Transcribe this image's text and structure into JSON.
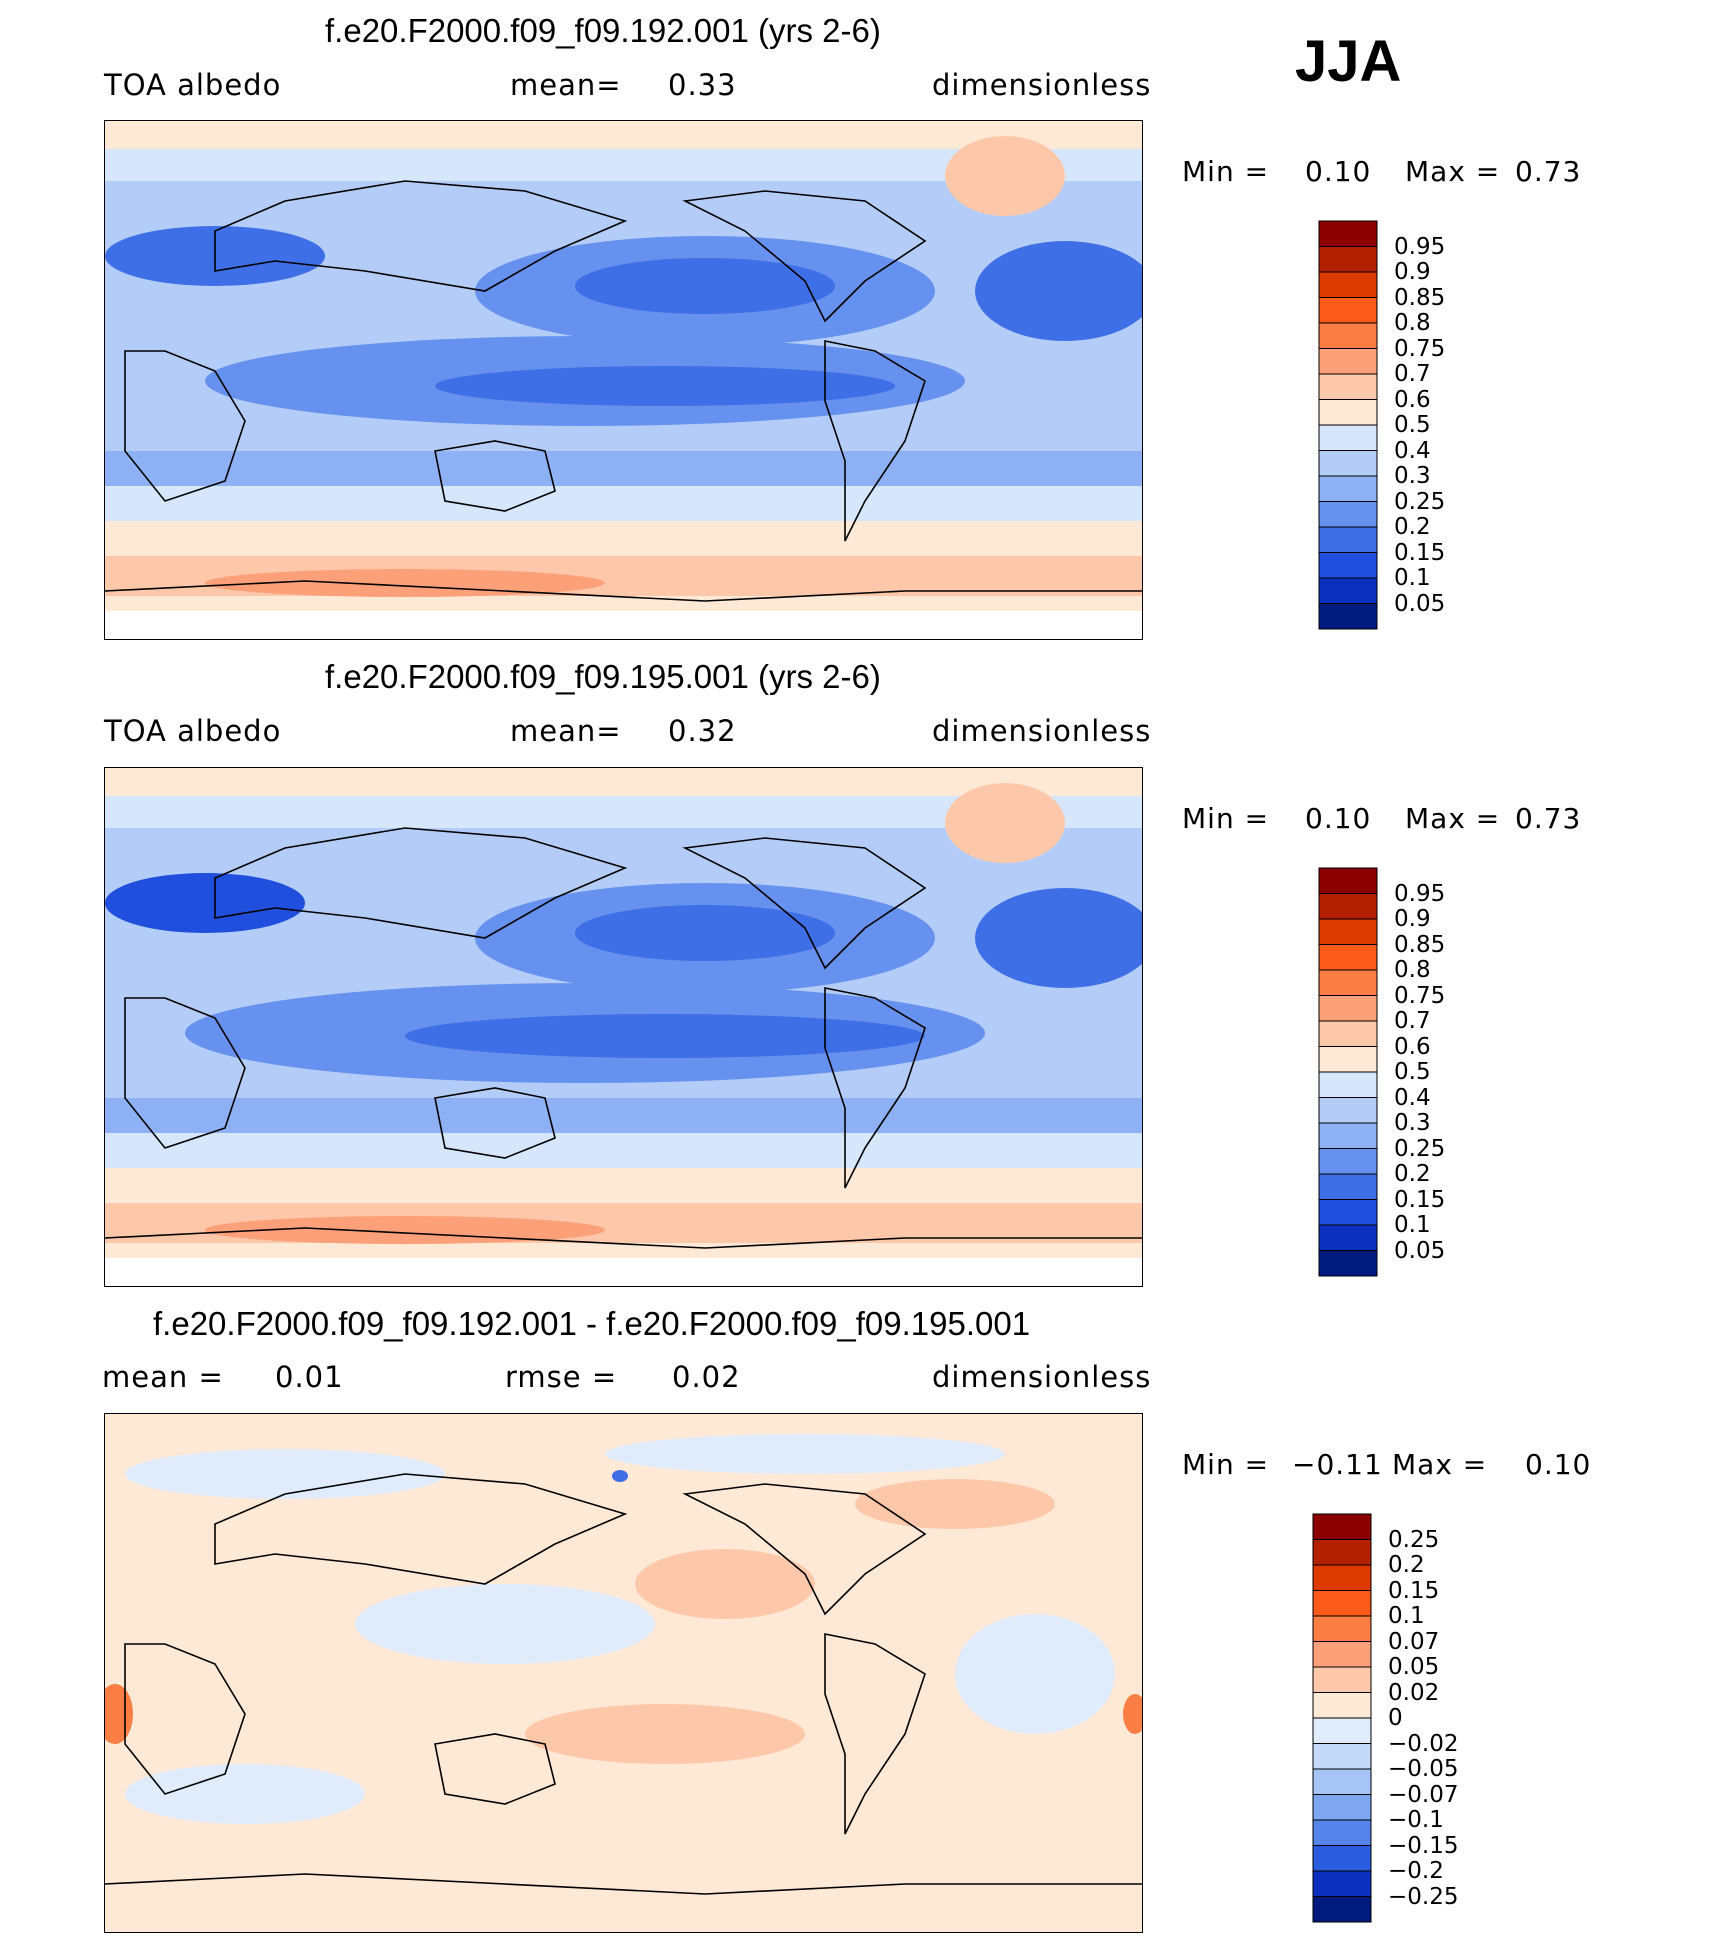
{
  "season": "JJA",
  "chart_data": [
    {
      "type": "heatmap",
      "title": "f.e20.F2000.f09_f09.192.001 (yrs 2-6)",
      "left_label": "TOA albedo",
      "mean_label": "mean=",
      "mean_value": "0.33",
      "units": "dimensionless",
      "min_label": "Min =",
      "min_value": "0.10",
      "max_label": "Max =",
      "max_value": "0.73",
      "colorbar": {
        "levels": [
          "0.95",
          "0.9",
          "0.85",
          "0.8",
          "0.75",
          "0.7",
          "0.6",
          "0.5",
          "0.4",
          "0.3",
          "0.25",
          "0.2",
          "0.15",
          "0.1",
          "0.05"
        ],
        "colors": [
          "#8b0000",
          "#b22000",
          "#dd3a00",
          "#fa5a1a",
          "#fb7f45",
          "#fca07a",
          "#fdc8aa",
          "#fee8d6",
          "#d6e6fb",
          "#b4cdf8",
          "#8db1f4",
          "#6791ee",
          "#3f6fe6",
          "#1f4fdc",
          "#0b30c0",
          "#001a7d"
        ]
      }
    },
    {
      "type": "heatmap",
      "title": "f.e20.F2000.f09_f09.195.001 (yrs 2-6)",
      "left_label": "TOA albedo",
      "mean_label": "mean=",
      "mean_value": "0.32",
      "units": "dimensionless",
      "min_label": "Min =",
      "min_value": "0.10",
      "max_label": "Max =",
      "max_value": "0.73",
      "colorbar": {
        "levels": [
          "0.95",
          "0.9",
          "0.85",
          "0.8",
          "0.75",
          "0.7",
          "0.6",
          "0.5",
          "0.4",
          "0.3",
          "0.25",
          "0.2",
          "0.15",
          "0.1",
          "0.05"
        ],
        "colors": [
          "#8b0000",
          "#b22000",
          "#dd3a00",
          "#fa5a1a",
          "#fb7f45",
          "#fca07a",
          "#fdc8aa",
          "#fee8d6",
          "#d6e6fb",
          "#b4cdf8",
          "#8db1f4",
          "#6791ee",
          "#3f6fe6",
          "#1f4fdc",
          "#0b30c0",
          "#001a7d"
        ]
      }
    },
    {
      "type": "heatmap",
      "title": "f.e20.F2000.f09_f09.192.001 - f.e20.F2000.f09_f09.195.001",
      "left_label": "mean =",
      "left_value": "0.01",
      "rmse_label": "rmse =",
      "rmse_value": "0.02",
      "units": "dimensionless",
      "min_label": "Min =",
      "min_value": "−0.11",
      "max_label": "Max =",
      "max_value": "0.10",
      "colorbar": {
        "levels": [
          "0.25",
          "0.2",
          "0.15",
          "0.1",
          "0.07",
          "0.05",
          "0.02",
          "0",
          "−0.02",
          "−0.05",
          "−0.07",
          "−0.1",
          "−0.15",
          "−0.2",
          "−0.25"
        ],
        "colors": [
          "#8b0000",
          "#b22000",
          "#dd3a00",
          "#fa5a1a",
          "#fb7f45",
          "#fca07a",
          "#fdc8aa",
          "#fee8d6",
          "#e0ecfc",
          "#c5dafa",
          "#a6c4f6",
          "#7fa6f1",
          "#5584ea",
          "#2a5de0",
          "#0b30c0",
          "#001a7d"
        ]
      }
    }
  ]
}
